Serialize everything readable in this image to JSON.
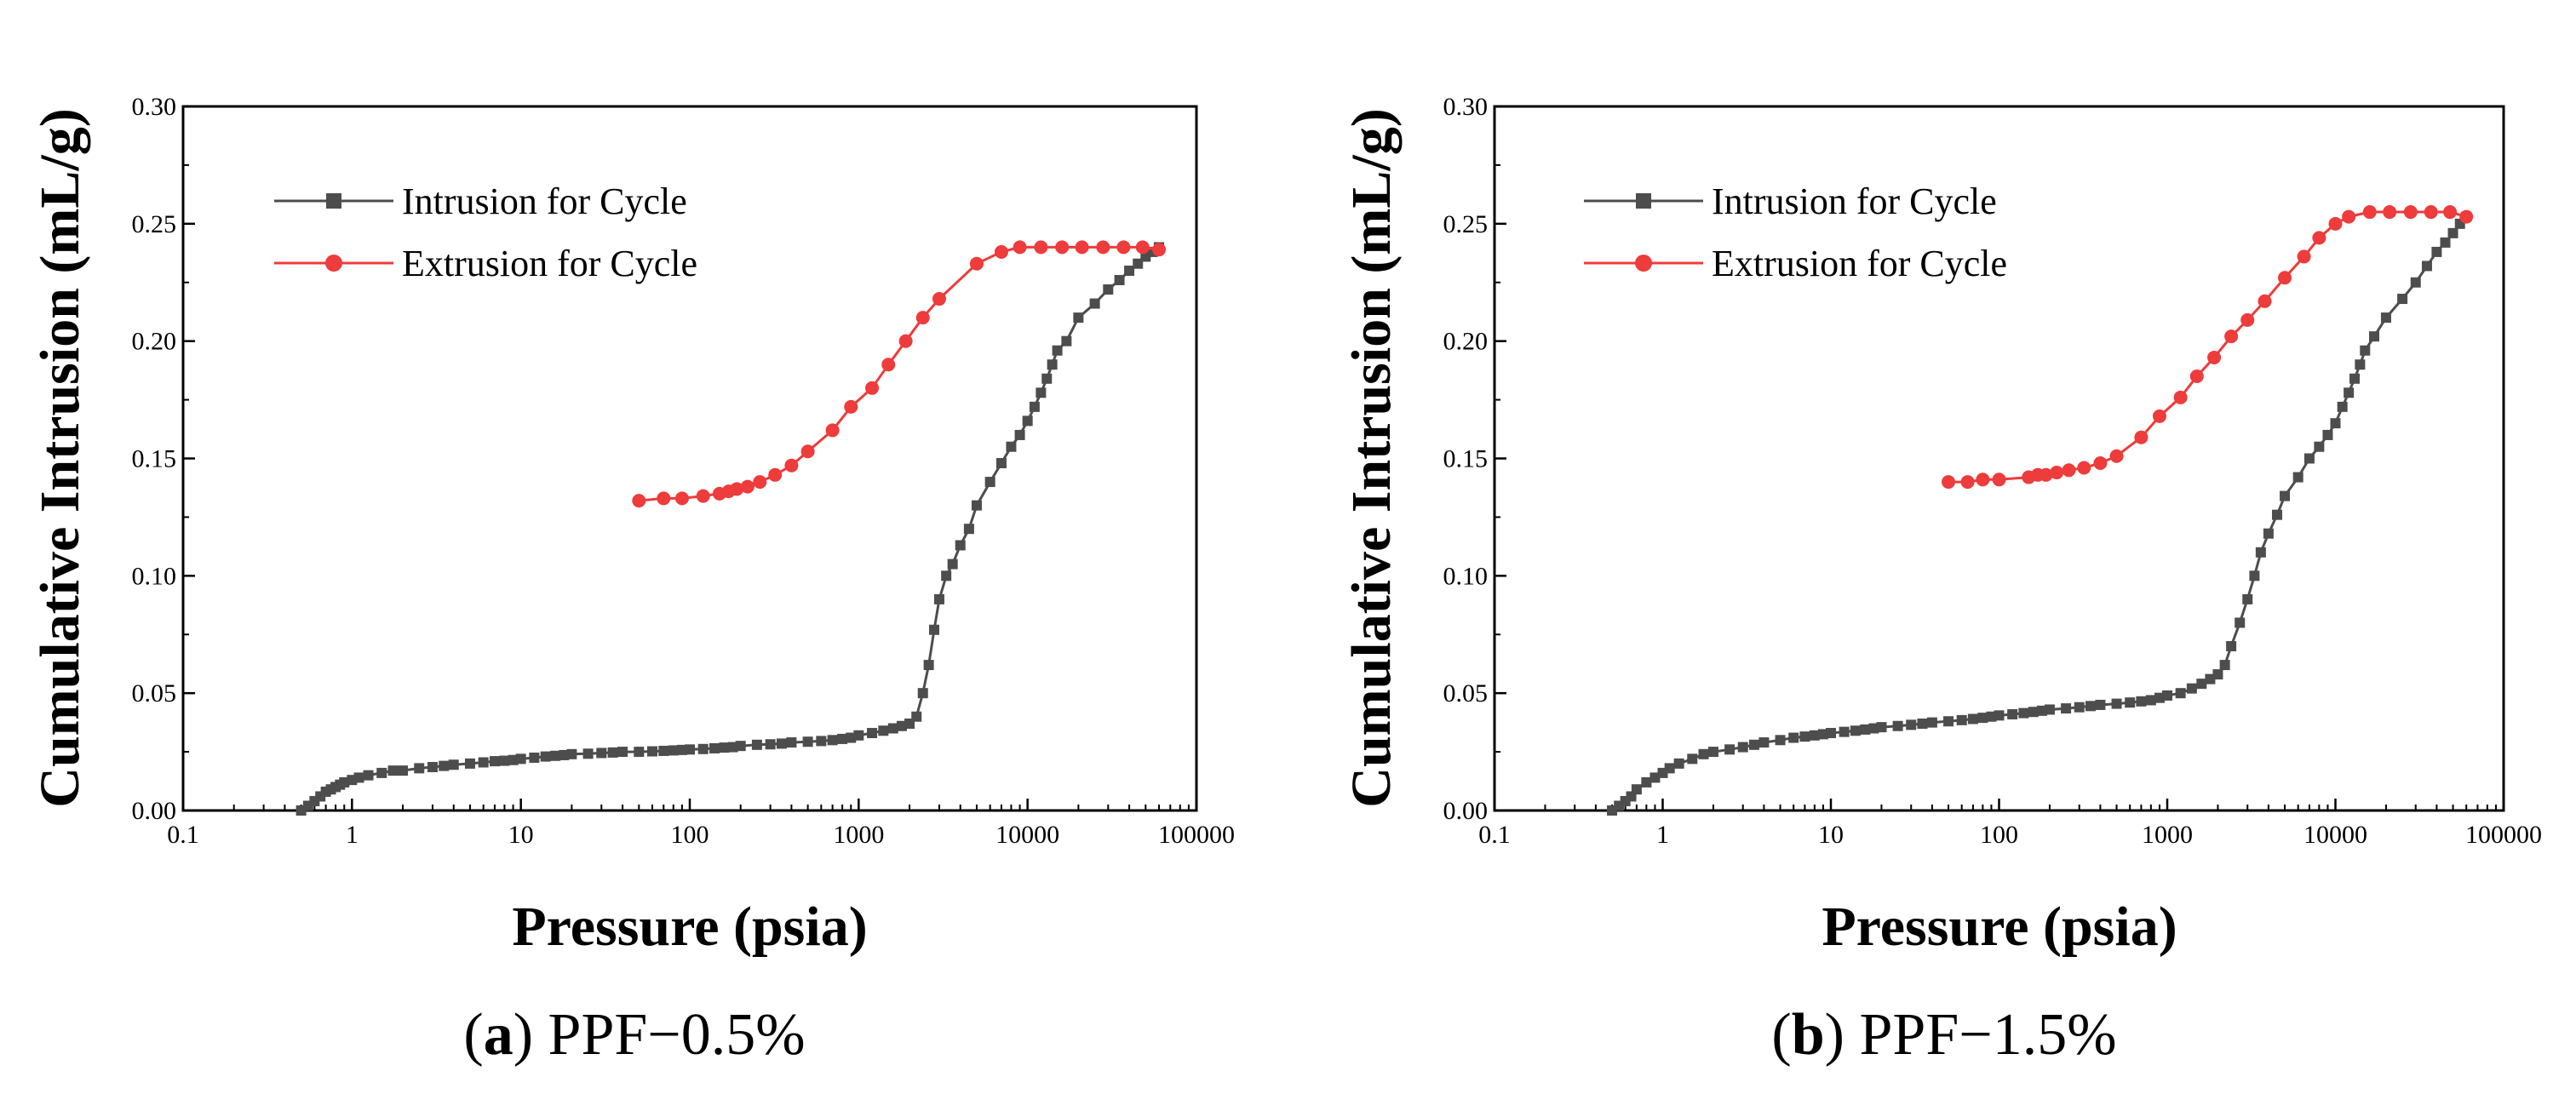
{
  "chart_data": [
    {
      "type": "scatter",
      "panel_label": "a",
      "caption_text": "PPF−0.5%",
      "xlabel": "Pressure (psia)",
      "ylabel": "Cumulative Intrusion (mL/g)",
      "xscale": "log",
      "xlim": [
        0.1,
        100000
      ],
      "ylim": [
        0,
        0.3
      ],
      "xticks": [
        "0.1",
        "1",
        "10",
        "100",
        "1000",
        "10000",
        "100000"
      ],
      "yticks": [
        "0.00",
        "0.05",
        "0.10",
        "0.15",
        "0.20",
        "0.25",
        "0.30"
      ],
      "legend_position": "top-left",
      "series": [
        {
          "name": "Intrusion for Cycle",
          "color": "#4d4d4d",
          "marker": "square",
          "x": [
            0.5,
            0.55,
            0.6,
            0.65,
            0.7,
            0.75,
            0.8,
            0.85,
            0.9,
            1,
            1.1,
            1.25,
            1.5,
            1.75,
            2,
            2.5,
            3,
            3.5,
            4,
            5,
            6,
            7,
            8,
            9,
            10,
            12,
            14,
            16,
            18,
            20,
            25,
            30,
            35,
            40,
            50,
            60,
            70,
            80,
            90,
            100,
            120,
            140,
            160,
            180,
            200,
            250,
            300,
            350,
            400,
            500,
            600,
            700,
            800,
            900,
            1000,
            1200,
            1400,
            1600,
            1800,
            2000,
            2200,
            2400,
            2600,
            2800,
            3000,
            3300,
            3600,
            4000,
            4500,
            5000,
            6000,
            7000,
            8000,
            9000,
            10000,
            11000,
            12000,
            13000,
            14000,
            15000,
            17000,
            20000,
            25000,
            30000,
            35000,
            40000,
            45000,
            50000,
            55000,
            60000
          ],
          "y": [
            0.0,
            0.002,
            0.004,
            0.006,
            0.008,
            0.009,
            0.01,
            0.011,
            0.012,
            0.013,
            0.014,
            0.015,
            0.016,
            0.017,
            0.017,
            0.018,
            0.0185,
            0.019,
            0.0195,
            0.02,
            0.0205,
            0.021,
            0.0212,
            0.0215,
            0.022,
            0.0225,
            0.023,
            0.0233,
            0.0236,
            0.024,
            0.0242,
            0.0245,
            0.0247,
            0.025,
            0.025,
            0.0252,
            0.0254,
            0.0256,
            0.0258,
            0.026,
            0.0262,
            0.0265,
            0.0268,
            0.027,
            0.0275,
            0.028,
            0.0282,
            0.0285,
            0.029,
            0.0293,
            0.0296,
            0.03,
            0.0305,
            0.031,
            0.032,
            0.033,
            0.034,
            0.035,
            0.036,
            0.037,
            0.04,
            0.05,
            0.062,
            0.077,
            0.09,
            0.1,
            0.105,
            0.113,
            0.12,
            0.13,
            0.14,
            0.148,
            0.155,
            0.16,
            0.166,
            0.172,
            0.178,
            0.184,
            0.19,
            0.196,
            0.2,
            0.21,
            0.216,
            0.222,
            0.226,
            0.23,
            0.233,
            0.236,
            0.238,
            0.24
          ]
        },
        {
          "name": "Extrusion for Cycle",
          "color": "#ee3b3b",
          "marker": "circle",
          "x": [
            50,
            70,
            90,
            120,
            150,
            170,
            190,
            220,
            260,
            320,
            400,
            500,
            700,
            900,
            1200,
            1500,
            1900,
            2400,
            3000,
            5000,
            7000,
            9000,
            12000,
            16000,
            21000,
            28000,
            37000,
            48000,
            60000
          ],
          "y": [
            0.132,
            0.133,
            0.133,
            0.134,
            0.135,
            0.136,
            0.137,
            0.138,
            0.14,
            0.143,
            0.147,
            0.153,
            0.162,
            0.172,
            0.18,
            0.19,
            0.2,
            0.21,
            0.218,
            0.233,
            0.238,
            0.24,
            0.24,
            0.24,
            0.24,
            0.24,
            0.24,
            0.24,
            0.239
          ]
        }
      ]
    },
    {
      "type": "scatter",
      "panel_label": "b",
      "caption_text": "PPF−1.5%",
      "xlabel": "Pressure (psia)",
      "ylabel": "Cumulative Intrusion (mL/g)",
      "xscale": "log",
      "xlim": [
        0.1,
        100000
      ],
      "ylim": [
        0,
        0.3
      ],
      "xticks": [
        "0.1",
        "1",
        "10",
        "100",
        "1000",
        "10000",
        "100000"
      ],
      "yticks": [
        "0.00",
        "0.05",
        "0.10",
        "0.15",
        "0.20",
        "0.25",
        "0.30"
      ],
      "legend_position": "top-left",
      "series": [
        {
          "name": "Intrusion for Cycle",
          "color": "#4d4d4d",
          "marker": "square",
          "x": [
            0.5,
            0.55,
            0.6,
            0.65,
            0.7,
            0.8,
            0.9,
            1,
            1.1,
            1.25,
            1.5,
            1.75,
            2,
            2.5,
            3,
            3.5,
            4,
            5,
            6,
            7,
            8,
            9,
            10,
            12,
            14,
            16,
            18,
            20,
            25,
            30,
            35,
            40,
            50,
            60,
            70,
            80,
            90,
            100,
            120,
            140,
            160,
            180,
            200,
            250,
            300,
            350,
            400,
            500,
            600,
            700,
            800,
            900,
            1000,
            1200,
            1400,
            1600,
            1800,
            2000,
            2200,
            2400,
            2700,
            3000,
            3300,
            3600,
            4000,
            4500,
            5000,
            6000,
            7000,
            8000,
            9000,
            10000,
            11000,
            12000,
            13000,
            14000,
            15000,
            17000,
            20000,
            25000,
            30000,
            35000,
            40000,
            45000,
            50000,
            55000,
            60000
          ],
          "y": [
            0.0,
            0.002,
            0.004,
            0.006,
            0.009,
            0.012,
            0.014,
            0.016,
            0.018,
            0.02,
            0.022,
            0.024,
            0.025,
            0.026,
            0.027,
            0.028,
            0.029,
            0.03,
            0.031,
            0.0315,
            0.032,
            0.0325,
            0.033,
            0.0335,
            0.034,
            0.0345,
            0.035,
            0.0355,
            0.036,
            0.0365,
            0.037,
            0.0375,
            0.038,
            0.0385,
            0.039,
            0.0395,
            0.04,
            0.0405,
            0.041,
            0.0415,
            0.042,
            0.0425,
            0.043,
            0.0435,
            0.044,
            0.0445,
            0.045,
            0.0455,
            0.046,
            0.0465,
            0.047,
            0.048,
            0.049,
            0.05,
            0.052,
            0.054,
            0.056,
            0.058,
            0.062,
            0.07,
            0.08,
            0.09,
            0.1,
            0.11,
            0.118,
            0.126,
            0.134,
            0.142,
            0.15,
            0.155,
            0.16,
            0.165,
            0.172,
            0.178,
            0.184,
            0.19,
            0.196,
            0.202,
            0.21,
            0.218,
            0.225,
            0.232,
            0.238,
            0.242,
            0.246,
            0.25,
            0.253
          ]
        },
        {
          "name": "Extrusion for Cycle",
          "color": "#ee3b3b",
          "marker": "circle",
          "x": [
            50,
            65,
            80,
            100,
            150,
            170,
            190,
            220,
            260,
            320,
            400,
            500,
            700,
            900,
            1200,
            1500,
            1900,
            2400,
            3000,
            3800,
            5000,
            6500,
            8000,
            10000,
            12000,
            16000,
            21000,
            28000,
            37000,
            48000,
            60000
          ],
          "y": [
            0.14,
            0.14,
            0.141,
            0.141,
            0.142,
            0.143,
            0.143,
            0.144,
            0.145,
            0.146,
            0.148,
            0.151,
            0.159,
            0.168,
            0.176,
            0.185,
            0.193,
            0.202,
            0.209,
            0.217,
            0.227,
            0.236,
            0.244,
            0.25,
            0.253,
            0.255,
            0.255,
            0.255,
            0.255,
            0.255,
            0.253
          ]
        }
      ]
    }
  ]
}
